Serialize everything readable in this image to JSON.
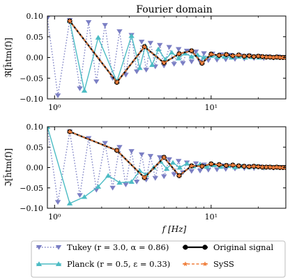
{
  "figure": {
    "title": "Fourier domain",
    "xlabel": "f [Hz]"
  },
  "chart_data": [
    {
      "type": "line",
      "panel": "real",
      "title": "Fourier domain",
      "ylabel": "ℜ[h̃tm(f)]",
      "xlabel": "",
      "xscale": "log",
      "xlim": [
        0.9,
        30
      ],
      "ylim": [
        -0.1,
        0.1
      ],
      "xticks": [
        1,
        10
      ],
      "xtick_labels": [
        "10⁰",
        "10¹"
      ],
      "yticks": [
        -0.1,
        -0.05,
        0.0,
        0.05,
        0.1
      ],
      "ytick_labels": [
        "−0.10",
        "−0.05",
        "0.00",
        "0.05",
        "0.10"
      ],
      "grid": false,
      "series": [
        {
          "name": "Tukey (r = 3.0, α = 0.86)",
          "color": "#7b7fc4",
          "style": "dotted",
          "marker": "triangle-down",
          "x": [
            0.9,
            1.05,
            1.25,
            1.45,
            1.65,
            1.85,
            2.1,
            2.35,
            2.6,
            2.85,
            3.1,
            3.35,
            3.6,
            3.85,
            4.1,
            4.4,
            4.7,
            5.0,
            5.4,
            5.8,
            6.2,
            6.6,
            7.0,
            7.5,
            8.0,
            8.5,
            9.0,
            9.6,
            10.2,
            10.9,
            11.6,
            12.4,
            13.3,
            14.2,
            15.2,
            16.3,
            17.5,
            18.8,
            20.2,
            21.7,
            23.3,
            25.0,
            26.8,
            28.8,
            30.0
          ],
          "values": [
            0.095,
            -0.092,
            0.09,
            -0.075,
            0.085,
            -0.058,
            0.078,
            -0.05,
            0.063,
            -0.042,
            0.054,
            -0.034,
            0.038,
            -0.03,
            0.035,
            -0.022,
            0.03,
            -0.02,
            0.025,
            -0.016,
            0.02,
            -0.014,
            0.016,
            -0.01,
            0.014,
            -0.01,
            0.01,
            -0.007,
            0.009,
            -0.006,
            0.007,
            -0.005,
            0.006,
            -0.004,
            0.005,
            -0.003,
            0.004,
            -0.002,
            0.003,
            -0.002,
            0.002,
            -0.001,
            0.002,
            0.0,
            0.0
          ]
        },
        {
          "name": "Planck (r = 0.5, ε = 0.33)",
          "color": "#4cbcc4",
          "style": "solid",
          "marker": "triangle-up",
          "x": [
            1.25,
            1.55,
            1.9,
            2.5,
            3.1,
            3.5,
            3.8,
            4.2,
            4.6,
            5.1,
            5.6,
            6.2,
            6.8,
            7.5,
            8.2,
            9.0,
            10.0,
            11.0,
            12.2,
            13.5,
            15.0,
            16.5,
            18.3,
            20.2,
            22.4,
            24.8,
            27.4,
            30.0
          ],
          "values": [
            0.088,
            -0.08,
            0.048,
            -0.058,
            0.052,
            -0.025,
            0.028,
            -0.018,
            0.02,
            -0.005,
            0.012,
            -0.002,
            0.01,
            0.002,
            0.006,
            0.0,
            0.004,
            0.001,
            0.002,
            0.0,
            0.002,
            0.0,
            0.001,
            0.0,
            0.001,
            0.0,
            0.0,
            0.0
          ]
        },
        {
          "name": "Original signal",
          "color": "#000000",
          "style": "solid",
          "marker": "circle",
          "x": [
            1.25,
            2.5,
            3.75,
            5.0,
            6.25,
            7.5,
            8.75,
            10.0,
            11.25,
            12.5,
            13.75,
            15.0,
            16.25,
            17.5,
            18.75,
            20.0,
            21.25,
            22.5,
            23.75,
            25.0,
            26.25,
            27.5,
            28.75,
            30.0
          ],
          "values": [
            0.088,
            -0.06,
            0.026,
            -0.013,
            0.009,
            0.016,
            -0.014,
            0.008,
            0.005,
            0.007,
            0.004,
            0.006,
            0.003,
            0.004,
            0.002,
            0.003,
            0.002,
            0.001,
            0.001,
            0.0,
            0.001,
            0.0,
            0.0,
            0.0
          ]
        },
        {
          "name": "SySS",
          "color": "#f07f3c",
          "style": "dashed",
          "marker": "star",
          "x": [
            1.25,
            2.5,
            3.75,
            5.0,
            6.25,
            7.5,
            8.75,
            10.0,
            11.25,
            12.5,
            13.75,
            15.0,
            16.25,
            17.5,
            18.75,
            20.0,
            21.25,
            22.5,
            23.75,
            25.0,
            26.25,
            27.5,
            28.75,
            30.0
          ],
          "values": [
            0.088,
            -0.06,
            0.026,
            -0.013,
            0.009,
            0.016,
            -0.014,
            0.008,
            0.005,
            0.007,
            0.004,
            0.006,
            0.003,
            0.004,
            0.002,
            0.003,
            0.002,
            0.001,
            0.001,
            0.0,
            0.001,
            0.0,
            0.0,
            0.0
          ]
        }
      ]
    },
    {
      "type": "line",
      "panel": "imag",
      "title": "",
      "ylabel": "ℑ[h̃tm(f)]",
      "xlabel": "f [Hz]",
      "xscale": "log",
      "xlim": [
        0.9,
        30
      ],
      "ylim": [
        -0.1,
        0.1
      ],
      "xticks": [
        1,
        10
      ],
      "xtick_labels": [
        "10⁰",
        "10¹"
      ],
      "yticks": [
        -0.1,
        -0.05,
        0.0,
        0.05,
        0.1
      ],
      "ytick_labels": [
        "−0.10",
        "−0.05",
        "0.00",
        "0.05",
        "0.10"
      ],
      "grid": false,
      "series": [
        {
          "name": "Tukey (r = 3.0, α = 0.86)",
          "color": "#7b7fc4",
          "style": "dotted",
          "marker": "triangle-down",
          "x": [
            0.9,
            1.05,
            1.25,
            1.45,
            1.65,
            1.85,
            2.1,
            2.35,
            2.6,
            2.85,
            3.1,
            3.35,
            3.6,
            3.85,
            4.1,
            4.4,
            4.7,
            5.0,
            5.4,
            5.8,
            6.2,
            6.6,
            7.0,
            7.5,
            8.0,
            8.5,
            9.0,
            9.6,
            10.2,
            10.9,
            11.6,
            12.4,
            13.3,
            14.2,
            15.2,
            16.3,
            17.5,
            18.8,
            20.2,
            21.7,
            23.3,
            25.0,
            26.8,
            28.8,
            30.0
          ],
          "values": [
            0.098,
            -0.085,
            0.088,
            -0.068,
            0.072,
            -0.055,
            0.06,
            -0.05,
            0.05,
            -0.042,
            0.04,
            -0.035,
            0.032,
            -0.03,
            0.028,
            -0.026,
            0.025,
            -0.022,
            0.02,
            -0.017,
            0.016,
            -0.012,
            0.012,
            -0.009,
            0.01,
            -0.008,
            0.007,
            -0.006,
            0.006,
            -0.005,
            0.005,
            -0.004,
            0.004,
            -0.003,
            0.003,
            -0.002,
            0.002,
            -0.002,
            0.002,
            -0.001,
            0.001,
            -0.001,
            0.001,
            0.0,
            0.0
          ]
        },
        {
          "name": "Planck (r = 0.5, ε = 0.33)",
          "color": "#4cbcc4",
          "style": "solid",
          "marker": "triangle-up",
          "x": [
            0.9,
            1.25,
            1.55,
            1.9,
            2.2,
            2.6,
            3.1,
            3.5,
            3.85,
            4.3,
            4.75,
            5.2,
            5.7,
            6.3,
            7.0,
            7.7,
            8.5,
            9.4,
            10.4,
            11.5,
            12.8,
            14.2,
            15.8,
            17.5,
            19.5,
            21.7,
            24.2,
            27.0,
            30.0
          ],
          "values": [
            0.1,
            -0.088,
            -0.072,
            -0.047,
            -0.02,
            -0.037,
            -0.035,
            -0.008,
            -0.018,
            0.0,
            0.015,
            -0.003,
            0.012,
            0.0,
            0.01,
            0.003,
            0.008,
            0.002,
            0.006,
            0.002,
            0.004,
            0.001,
            0.003,
            0.001,
            0.002,
            0.0,
            0.001,
            0.0,
            0.0
          ]
        },
        {
          "name": "Original signal",
          "color": "#000000",
          "style": "solid",
          "marker": "circle",
          "x": [
            1.25,
            2.5,
            3.75,
            5.0,
            6.25,
            7.5,
            8.75,
            10.0,
            11.25,
            12.5,
            13.75,
            15.0,
            16.25,
            17.5,
            18.75,
            20.0,
            21.25,
            22.5,
            23.75,
            25.0,
            26.25,
            27.5,
            28.75,
            30.0
          ],
          "values": [
            0.088,
            0.042,
            -0.025,
            0.025,
            -0.02,
            0.004,
            0.003,
            0.009,
            0.007,
            0.005,
            0.006,
            0.004,
            0.003,
            0.002,
            0.003,
            0.002,
            0.001,
            0.001,
            0.001,
            0.0,
            0.001,
            0.0,
            0.0,
            0.0
          ]
        },
        {
          "name": "SySS",
          "color": "#f07f3c",
          "style": "dashed",
          "marker": "star",
          "x": [
            1.25,
            2.5,
            3.75,
            5.0,
            6.25,
            7.5,
            8.75,
            10.0,
            11.25,
            12.5,
            13.75,
            15.0,
            16.25,
            17.5,
            18.75,
            20.0,
            21.25,
            22.5,
            23.75,
            25.0,
            26.25,
            27.5,
            28.75,
            30.0
          ],
          "values": [
            0.088,
            0.042,
            -0.025,
            0.025,
            -0.02,
            0.004,
            0.003,
            0.009,
            0.007,
            0.005,
            0.006,
            0.004,
            0.003,
            0.002,
            0.003,
            0.002,
            0.001,
            0.001,
            0.001,
            0.0,
            0.001,
            0.0,
            0.0,
            0.0
          ]
        }
      ]
    }
  ],
  "legend": {
    "placement": "bottom",
    "entries": [
      {
        "label": "Tukey (r = 3.0, α = 0.86)",
        "color": "#7b7fc4",
        "style": "dotted",
        "marker": "triangle-down"
      },
      {
        "label": "Planck (r = 0.5, ε = 0.33)",
        "color": "#4cbcc4",
        "style": "solid",
        "marker": "triangle-up"
      },
      {
        "label": "Original signal",
        "color": "#000000",
        "style": "solid",
        "marker": "circle"
      },
      {
        "label": "SySS",
        "color": "#f07f3c",
        "style": "dashed",
        "marker": "star"
      }
    ]
  }
}
